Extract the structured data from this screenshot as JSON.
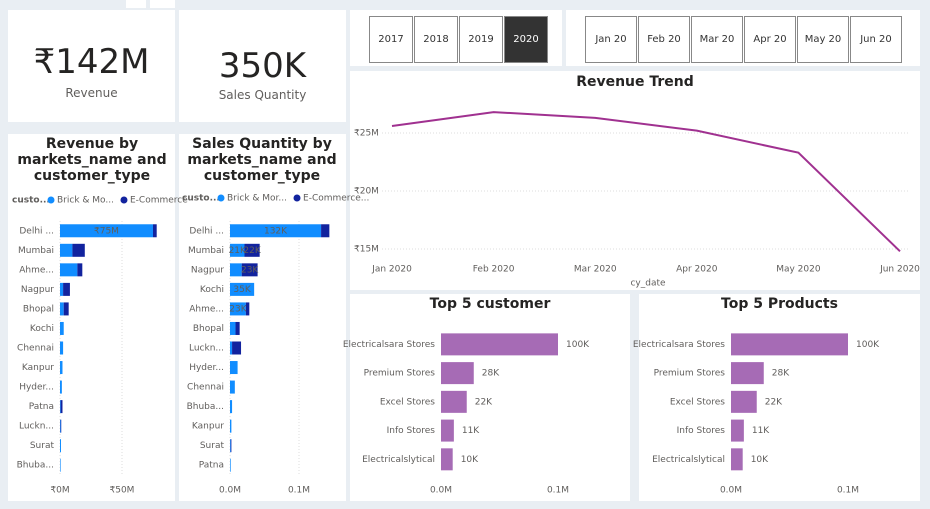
{
  "cards": [
    {
      "value": "₹142M",
      "label": "Revenue"
    },
    {
      "value": "350K",
      "label": "Sales Quantity"
    }
  ],
  "year_slicer": {
    "items": [
      "2017",
      "2018",
      "2019",
      "2020"
    ],
    "selected": "2020"
  },
  "month_slicer": {
    "items": [
      "Jan 20",
      "Feb 20",
      "Mar 20",
      "Apr 20",
      "May 20",
      "Jun 20"
    ]
  },
  "chart_data": [
    {
      "type": "bar",
      "orientation": "horizontal",
      "stacked": true,
      "title": "Revenue by markets_name and customer_type",
      "legend_title": "custo...",
      "categories": [
        "Delhi ...",
        "Mumbai",
        "Ahme...",
        "Nagpur",
        "Bhopal",
        "Kochi",
        "Chennai",
        "Kanpur",
        "Hyder...",
        "Patna",
        "Luckn...",
        "Surat",
        "Bhuba..."
      ],
      "series": [
        {
          "name": "Brick & Mo...",
          "color": "#118dff",
          "values": [
            75,
            10,
            14,
            2.5,
            3,
            3,
            2.5,
            2,
            1.5,
            0.5,
            0.5,
            0.8,
            0.5
          ],
          "value_labels": [
            "₹75M",
            null,
            null,
            null,
            null,
            null,
            null,
            null,
            null,
            null,
            null,
            null,
            null
          ]
        },
        {
          "name": "E-Commerce",
          "color": "#12239e",
          "values": [
            3,
            10,
            4,
            5.5,
            4,
            0,
            0,
            0,
            0,
            1.5,
            0.5,
            0,
            0
          ]
        }
      ],
      "xlim": [
        0,
        88
      ],
      "xticks": [
        {
          "value": 0,
          "label": "₹0M"
        },
        {
          "value": 50,
          "label": "₹50M"
        }
      ],
      "grid": true
    },
    {
      "type": "bar",
      "orientation": "horizontal",
      "stacked": true,
      "title": "Sales Quantity by markets_name and customer_type",
      "legend_title": "custo...",
      "categories": [
        "Delhi ...",
        "Mumbai",
        "Nagpur",
        "Kochi",
        "Ahme...",
        "Bhopal",
        "Luckn...",
        "Hyder...",
        "Chennai",
        "Bhuba...",
        "Kanpur",
        "Surat",
        "Patna"
      ],
      "series": [
        {
          "name": "Brick & Mor...",
          "color": "#118dff",
          "values": [
            0.132,
            0.021,
            0.017,
            0.035,
            0.023,
            0.008,
            0.003,
            0.011,
            0.007,
            0.003,
            0.002,
            0.001,
            0.001
          ],
          "value_labels": [
            "132K",
            "21K",
            null,
            "35K",
            "23K",
            null,
            null,
            null,
            null,
            null,
            null,
            null,
            null
          ]
        },
        {
          "name": "E-Commerce...",
          "color": "#12239e",
          "values": [
            0.012,
            0.022,
            0.023,
            0,
            0.005,
            0.006,
            0.013,
            0,
            0,
            0,
            0,
            0.001,
            0
          ],
          "value_labels": [
            null,
            "22K",
            "23K",
            null,
            null,
            null,
            null,
            null,
            null,
            null,
            null,
            null,
            null
          ]
        }
      ],
      "xlim": [
        0,
        0.16
      ],
      "xticks": [
        {
          "value": 0,
          "label": "0.0M"
        },
        {
          "value": 0.1,
          "label": "0.1M"
        }
      ],
      "grid": true
    },
    {
      "type": "line",
      "title": "Revenue Trend",
      "x_label": "cy_date",
      "x": [
        "Jan 2020",
        "Feb 2020",
        "Mar 2020",
        "Apr 2020",
        "May 2020",
        "Jun 2020"
      ],
      "values": [
        25.6,
        26.8,
        26.3,
        25.2,
        23.3,
        14.8
      ],
      "color": "#a03190",
      "ylim": [
        14.5,
        27.8
      ],
      "yticks": [
        {
          "value": 15,
          "label": "₹15M"
        },
        {
          "value": 20,
          "label": "₹20M"
        },
        {
          "value": 25,
          "label": "₹25M"
        }
      ],
      "grid": true
    },
    {
      "type": "bar",
      "orientation": "horizontal",
      "title": "Top 5 customer",
      "categories": [
        "Electricalsara Stores",
        "Premium Stores",
        "Excel Stores",
        "Info Stores",
        "Electricalslytical"
      ],
      "values": [
        0.1,
        0.028,
        0.022,
        0.011,
        0.01
      ],
      "value_labels": [
        "100K",
        "28K",
        "22K",
        "11K",
        "10K"
      ],
      "color": "#a66bb5",
      "xlim": [
        0,
        0.16
      ],
      "xticks": [
        {
          "value": 0,
          "label": "0.0M"
        },
        {
          "value": 0.1,
          "label": "0.1M"
        }
      ],
      "grid": false
    },
    {
      "type": "bar",
      "orientation": "horizontal",
      "title": "Top 5 Products",
      "categories": [
        "Electricalsara Stores",
        "Premium Stores",
        "Excel Stores",
        "Info Stores",
        "Electricalslytical"
      ],
      "values": [
        0.1,
        0.028,
        0.022,
        0.011,
        0.01
      ],
      "value_labels": [
        "100K",
        "28K",
        "22K",
        "11K",
        "10K"
      ],
      "color": "#a66bb5",
      "xlim": [
        0,
        0.16
      ],
      "xticks": [
        {
          "value": 0,
          "label": "0.0M"
        },
        {
          "value": 0.1,
          "label": "0.1M"
        }
      ],
      "grid": false
    }
  ]
}
